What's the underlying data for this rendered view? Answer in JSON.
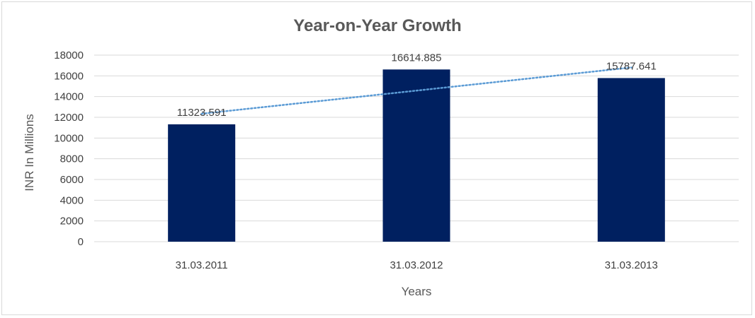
{
  "chart_data": {
    "type": "bar",
    "title": "Year-on-Year Growth",
    "xlabel": "Years",
    "ylabel": "INR In Millions",
    "categories": [
      "31.03.2011",
      "31.03.2012",
      "31.03.2013"
    ],
    "values": [
      11323.591,
      16614.885,
      15787.641
    ],
    "data_labels": [
      "11323.591",
      "16614.885",
      "15787.641"
    ],
    "ylim": [
      0,
      18000
    ],
    "yticks": [
      0,
      2000,
      4000,
      6000,
      8000,
      10000,
      12000,
      14000,
      16000,
      18000
    ],
    "grid": true,
    "legend": "none",
    "trendline": "linear",
    "colors": {
      "bar": "#002060",
      "trendline": "#5b9bd5",
      "grid": "#d9d9d9"
    }
  }
}
